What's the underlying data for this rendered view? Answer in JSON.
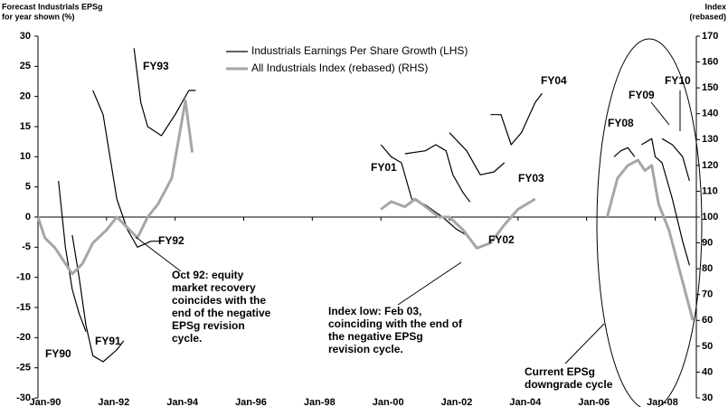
{
  "chart_data": {
    "type": "line",
    "y_label": [
      "Forecast Industrials EPSg",
      "for year shown (%)"
    ],
    "y2_label": [
      "Index",
      "(rebased)"
    ],
    "xlim": [
      1990,
      2009.2
    ],
    "xticks": [
      {
        "value": 1990,
        "label": "Jan-90"
      },
      {
        "value": 1992,
        "label": "Jan-92"
      },
      {
        "value": 1994,
        "label": "Jan-94"
      },
      {
        "value": 1996,
        "label": "Jan-96"
      },
      {
        "value": 1998,
        "label": "Jan-98"
      },
      {
        "value": 2000,
        "label": "Jan-00"
      },
      {
        "value": 2002,
        "label": "Jan-02"
      },
      {
        "value": 2004,
        "label": "Jan-04"
      },
      {
        "value": 2006,
        "label": "Jan-06"
      },
      {
        "value": 2008,
        "label": "Jan-08"
      }
    ],
    "ylim": [
      -30,
      30
    ],
    "yticks": [
      30,
      25,
      20,
      15,
      10,
      5,
      0,
      -5,
      -10,
      -15,
      -20,
      -25,
      -30
    ],
    "y2lim": [
      30,
      170
    ],
    "y2ticks": [
      170,
      160,
      150,
      140,
      130,
      120,
      110,
      100,
      90,
      80,
      70,
      60,
      50,
      40,
      30
    ],
    "series": [
      {
        "name": "Industrials Earnings Per Share Growth (LHS)",
        "color": "#000000",
        "x": [
          1990.6,
          1990.8,
          1991.0,
          1991.2,
          1991.4,
          null,
          1991.0,
          1991.2,
          1991.4,
          1991.6,
          1991.9,
          1992.3,
          1992.5,
          null,
          1991.6,
          1991.9,
          1992.1,
          1992.3,
          1992.6,
          1992.9,
          1993.3,
          1993.6,
          null,
          1992.8,
          1993.0,
          1993.2,
          1993.6,
          1994.0,
          1994.4,
          1994.6,
          null,
          2000.0,
          2000.3,
          2000.6,
          2000.9,
          2001.3,
          2001.8,
          2002.2,
          2002.5,
          null,
          2000.7,
          2001.3,
          2001.6,
          2001.9,
          2002.1,
          2002.4,
          2002.6,
          null,
          2002.0,
          2002.5,
          2002.9,
          2003.3,
          2003.6,
          null,
          2003.2,
          2003.5,
          2003.8,
          2004.1,
          2004.5,
          2004.7,
          null,
          2006.8,
          2007.0,
          2007.2,
          2007.4,
          null,
          2007.6,
          2007.9,
          2008.0,
          2008.2,
          2008.5,
          2008.8,
          2009.0,
          null,
          2008.2,
          2008.5,
          2008.8,
          2009.0
        ],
        "values": [
          6,
          -5,
          -12,
          -16,
          -19,
          null,
          -3,
          -10,
          -18,
          -23,
          -24,
          -22,
          -20.5,
          null,
          21,
          17,
          10,
          3,
          -2,
          -5,
          -4,
          -4,
          null,
          28,
          19,
          15,
          13.5,
          17,
          21,
          21,
          null,
          12,
          10,
          9,
          3,
          2,
          0,
          -2,
          -3,
          null,
          10.5,
          11,
          12,
          11,
          7,
          4,
          2.5,
          null,
          14,
          11,
          7,
          7.5,
          9,
          null,
          17,
          17,
          12,
          14,
          19,
          20.5,
          null,
          10,
          11,
          11.5,
          10,
          null,
          12,
          13,
          10,
          9,
          3,
          -4,
          -8,
          null,
          13,
          12,
          10,
          6
        ]
      },
      {
        "name": "All Industrials Index (rebased) (RHS)",
        "color": "#a6a6a6",
        "axis": "y2",
        "x": [
          1990.0,
          1990.2,
          1990.5,
          1990.8,
          1991.0,
          1991.3,
          1991.6,
          1992.0,
          1992.3,
          1992.6,
          1992.9,
          1993.2,
          1993.5,
          1993.9,
          1994.1,
          1994.3,
          1994.5,
          null,
          2000.0,
          2000.3,
          2000.7,
          2001.0,
          2001.3,
          2001.7,
          2002.0,
          2002.4,
          2002.8,
          2003.2,
          2003.6,
          2004.0,
          2004.5,
          null,
          2006.6,
          2006.9,
          2007.2,
          2007.5,
          2007.7,
          2007.9,
          2008.1,
          2008.4,
          2008.7,
          2009.0,
          2009.1
        ],
        "values": [
          100,
          92,
          88,
          82,
          78,
          82,
          90,
          95,
          100,
          96,
          92,
          100,
          105,
          115,
          130,
          145,
          125,
          null,
          103,
          106,
          104,
          107,
          104,
          100,
          100,
          95,
          88,
          90,
          97,
          103,
          107,
          null,
          100,
          115,
          120,
          122,
          118,
          120,
          105,
          95,
          80,
          65,
          60
        ]
      }
    ],
    "annotations": [
      [
        "FY90"
      ],
      [
        "FY91"
      ],
      [
        "FY92"
      ],
      [
        "FY93"
      ],
      [
        "FY01"
      ],
      [
        "FY02"
      ],
      [
        "FY03"
      ],
      [
        "FY04"
      ],
      [
        "FY08"
      ],
      [
        "FY09"
      ],
      [
        "FY10"
      ],
      [
        "Oct 92: equity",
        "market recovery",
        "coincides with the",
        "end of the negative",
        "EPSg revision",
        "cycle."
      ],
      [
        "Index low: Feb 03,",
        "coinciding with the end of",
        "the negative EPSg",
        "revision cycle."
      ],
      [
        "Current EPSg",
        "downgrade cycle"
      ]
    ]
  }
}
